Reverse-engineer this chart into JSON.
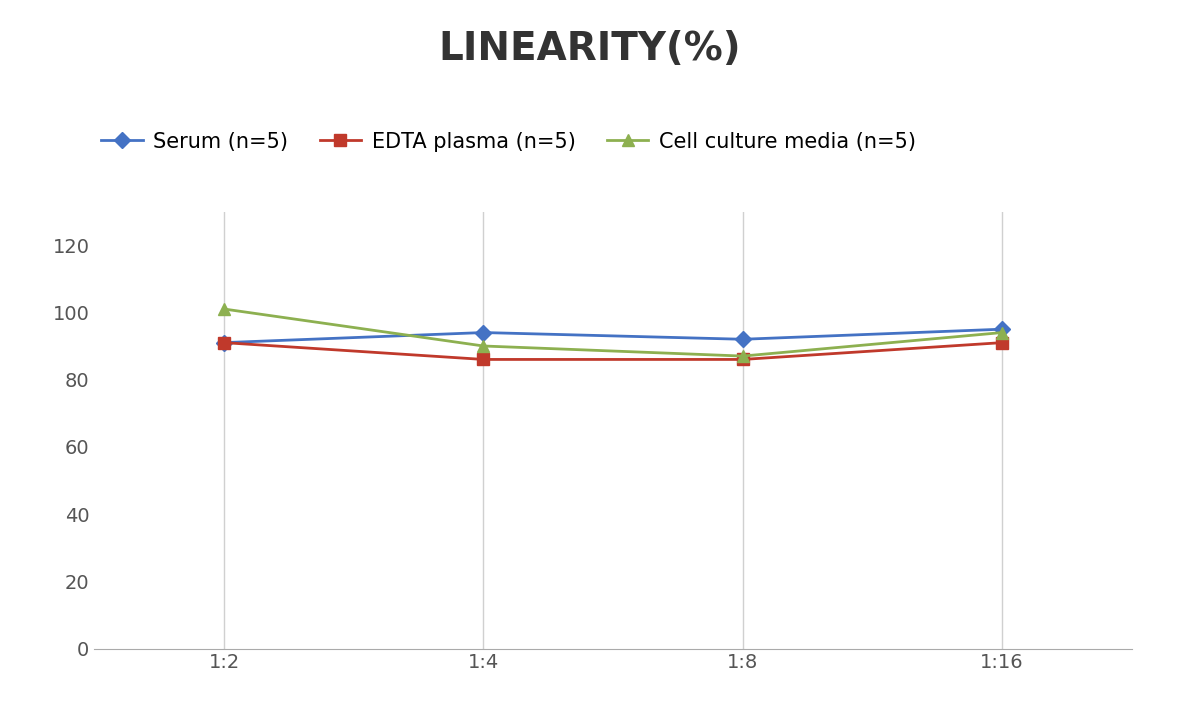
{
  "title": "LINEARITY(%)",
  "x_labels": [
    "1:2",
    "1:4",
    "1:8",
    "1:16"
  ],
  "x_positions": [
    0,
    1,
    2,
    3
  ],
  "series": [
    {
      "name": "Serum (n=5)",
      "values": [
        91,
        94,
        92,
        95
      ],
      "color": "#4472C4",
      "marker": "D",
      "markersize": 8,
      "linewidth": 2
    },
    {
      "name": "EDTA plasma (n=5)",
      "values": [
        91,
        86,
        86,
        91
      ],
      "color": "#C0392B",
      "marker": "s",
      "markersize": 8,
      "linewidth": 2
    },
    {
      "name": "Cell culture media (n=5)",
      "values": [
        101,
        90,
        87,
        94
      ],
      "color": "#8DB050",
      "marker": "^",
      "markersize": 9,
      "linewidth": 2
    }
  ],
  "ylim": [
    0,
    130
  ],
  "yticks": [
    0,
    20,
    40,
    60,
    80,
    100,
    120
  ],
  "title_fontsize": 28,
  "legend_fontsize": 15,
  "tick_fontsize": 14,
  "background_color": "#ffffff",
  "grid_color": "#d0d0d0"
}
